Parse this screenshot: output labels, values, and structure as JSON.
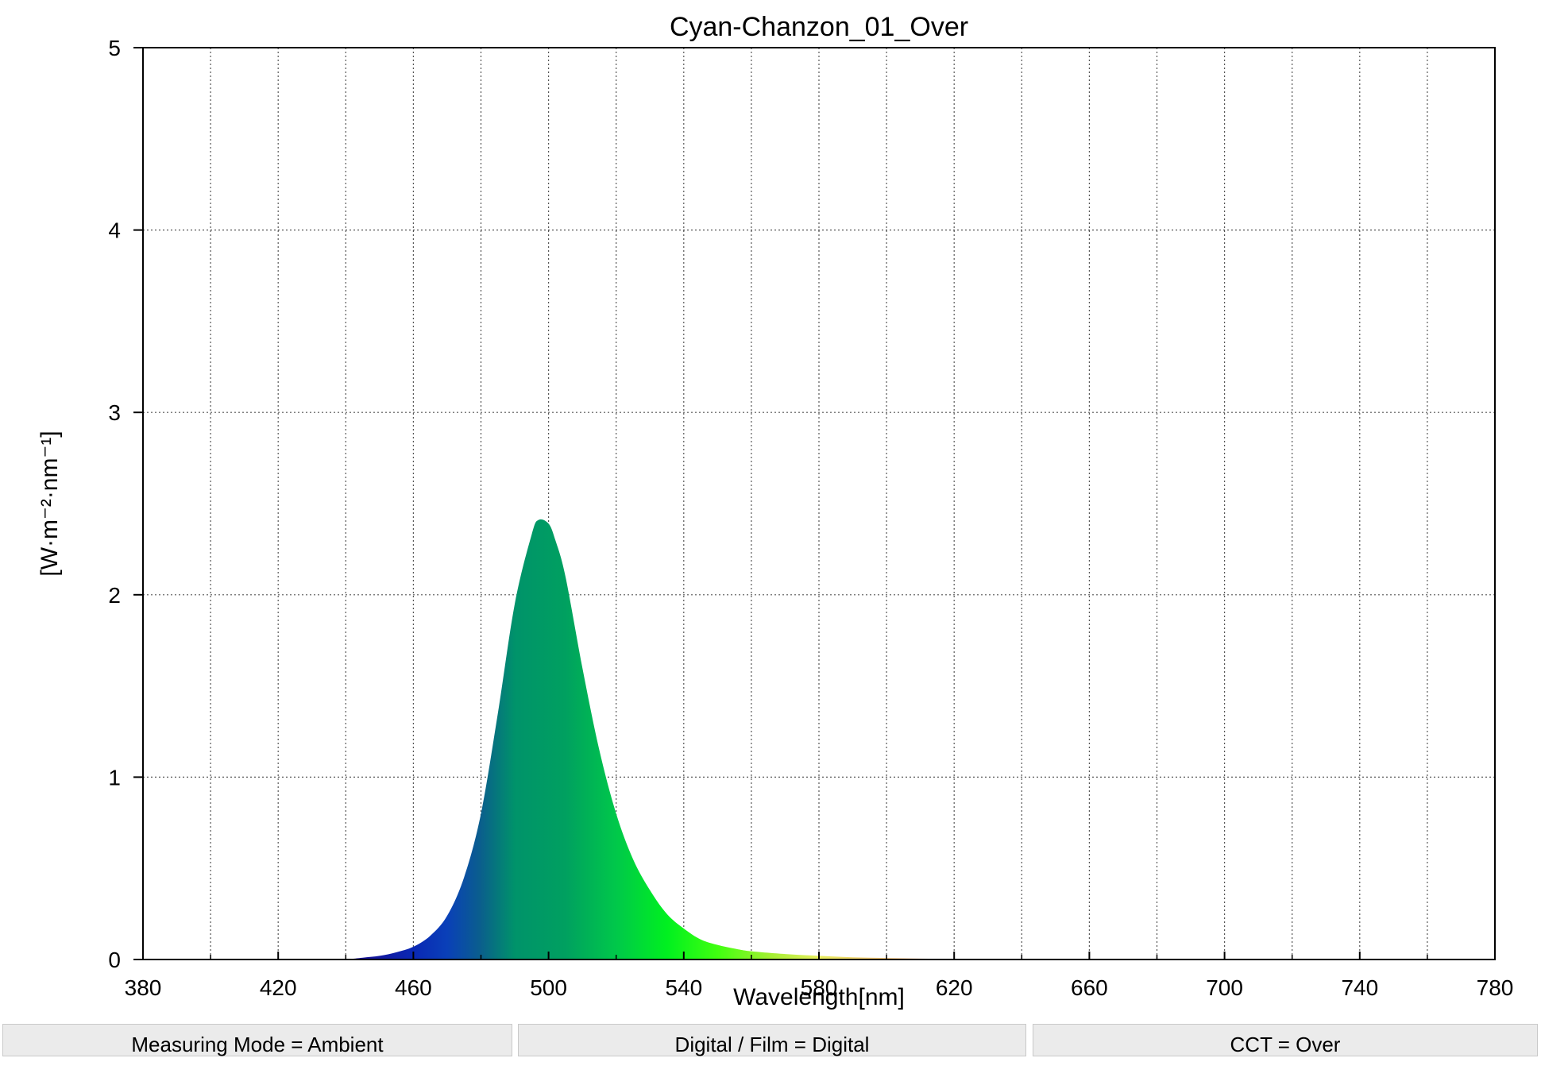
{
  "chart_data": {
    "type": "area",
    "title": "Cyan-Chanzon_01_Over",
    "xlabel": "Wavelength[nm]",
    "ylabel": "[W·m⁻²·nm⁻¹]",
    "xlim": [
      380,
      780
    ],
    "ylim": [
      0,
      5
    ],
    "x_ticks": [
      380,
      420,
      460,
      500,
      540,
      580,
      620,
      660,
      700,
      740,
      780
    ],
    "y_ticks": [
      0,
      1,
      2,
      3,
      4,
      5
    ],
    "x_minor_grid": [
      400,
      440,
      480,
      520,
      560,
      600,
      640,
      680,
      720,
      760
    ],
    "grid": true,
    "fill": "spectral gradient",
    "x": [
      440,
      445,
      450,
      455,
      460,
      465,
      470,
      475,
      480,
      485,
      490,
      495,
      497,
      500,
      502,
      505,
      510,
      515,
      520,
      525,
      530,
      535,
      540,
      545,
      550,
      555,
      560,
      570,
      580,
      590,
      600,
      610,
      620,
      630
    ],
    "y": [
      0.0,
      0.01,
      0.02,
      0.04,
      0.07,
      0.13,
      0.24,
      0.45,
      0.8,
      1.35,
      1.95,
      2.33,
      2.41,
      2.39,
      2.3,
      2.1,
      1.6,
      1.15,
      0.8,
      0.55,
      0.38,
      0.25,
      0.17,
      0.11,
      0.08,
      0.06,
      0.045,
      0.03,
      0.02,
      0.012,
      0.008,
      0.005,
      0.003,
      0.0
    ]
  },
  "status_bar": {
    "cells": [
      "Measuring Mode = Ambient",
      "Digital / Film = Digital",
      "CCT = Over"
    ]
  }
}
